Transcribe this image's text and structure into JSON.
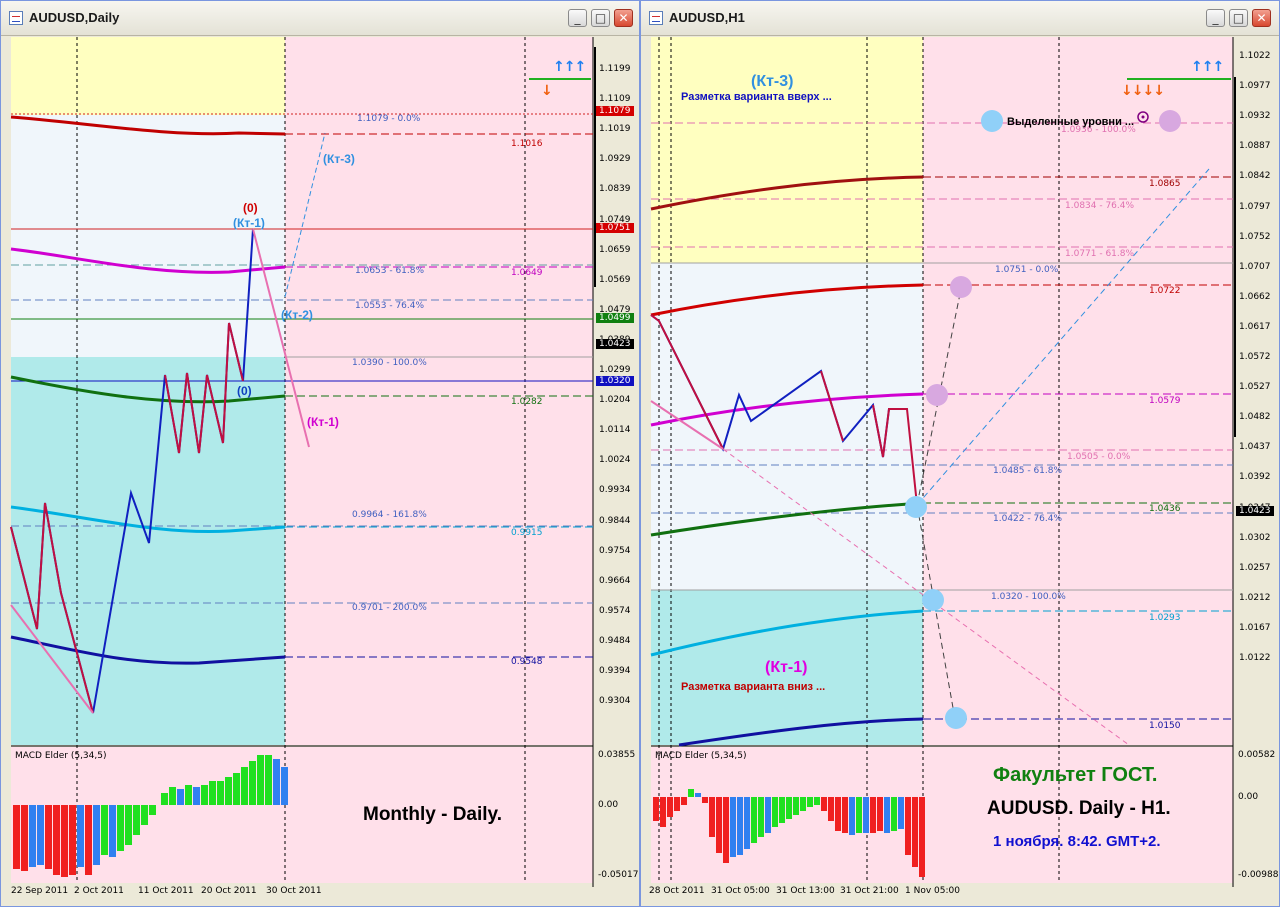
{
  "left_window": {
    "title": "AUDUSD,Daily",
    "indicator_label": "MACD Elder (5,34,5)",
    "caption": "Monthly - Daily.",
    "price_scale": [
      "1.1199",
      "1.1109",
      "1.1019",
      "1.0929",
      "1.0839",
      "1.0749",
      "1.0659",
      "1.0569",
      "1.0479",
      "1.0389",
      "1.0299",
      "1.0204",
      "1.0114",
      "1.0024",
      "0.9934",
      "0.9844",
      "0.9754",
      "0.9664",
      "0.9574",
      "0.9484",
      "0.9394",
      "0.9304"
    ],
    "price_tags": [
      {
        "text": "1.1079",
        "color": "#d40000"
      },
      {
        "text": "1.0751",
        "color": "#d40000"
      },
      {
        "text": "1.0499",
        "color": "#108010"
      },
      {
        "text": "1.0423",
        "color": "#000000"
      },
      {
        "text": "1.0320",
        "color": "#1010c0"
      }
    ],
    "macd_scale": [
      "0.03855",
      "0.00",
      "-0.05017"
    ],
    "dates": [
      "22 Sep 2011",
      "2 Oct 2011",
      "11 Oct 2011",
      "20 Oct 2011",
      "30 Oct 2011"
    ],
    "fib_levels": [
      {
        "text": "1.1079 - 0.0%",
        "color": "#4060c0"
      },
      {
        "text": "1.0653 - 61.8%",
        "color": "#4060c0"
      },
      {
        "text": "1.0553 - 76.4%",
        "color": "#4060c0"
      },
      {
        "text": "1.0390 - 100.0%",
        "color": "#4060c0"
      },
      {
        "text": "0.9964 - 161.8%",
        "color": "#4060c0"
      },
      {
        "text": "0.9701 - 200.0%",
        "color": "#4060c0"
      }
    ],
    "ma_values": [
      {
        "text": "1.1016",
        "color": "#c00000"
      },
      {
        "text": "1.0649",
        "color": "#c000c0"
      },
      {
        "text": "1.0282",
        "color": "#107010"
      },
      {
        "text": "0.9915",
        "color": "#00a0d0"
      },
      {
        "text": "0.9548",
        "color": "#1010a0"
      }
    ],
    "annotations": [
      {
        "text": "(0)",
        "color": "#d00000"
      },
      {
        "text": "(Кт-1)",
        "color": "#3090e0"
      },
      {
        "text": "(Кт-3)",
        "color": "#3090e0"
      },
      {
        "text": "(Кт-2)",
        "color": "#3090e0"
      },
      {
        "text": "(0)",
        "color": "#1040c0"
      },
      {
        "text": "(Кт-1)",
        "color": "#d000d0"
      }
    ],
    "arrows_up": "↑↑↑",
    "arrows_down": "↓"
  },
  "right_window": {
    "title": "AUDUSD,H1",
    "indicator_label": "MACD Elder (5,34,5)",
    "caption_title": "Факультет ГОСТ.",
    "caption_subtitle": "AUDUSD. Daily - H1.",
    "caption_date": "1 ноября. 8:42. GMT+2.",
    "label_up_kt": "(Кт-3)",
    "label_up_text": "Разметка варианта вверх ...",
    "label_down_kt": "(Кт-1)",
    "label_down_text": "Разметка варианта вниз ...",
    "label_levels": "Выделенные уровни ...",
    "price_scale": [
      "1.1022",
      "1.0977",
      "1.0932",
      "1.0887",
      "1.0842",
      "1.0797",
      "1.0752",
      "1.0707",
      "1.0662",
      "1.0617",
      "1.0572",
      "1.0527",
      "1.0482",
      "1.0437",
      "1.0392",
      "1.0347",
      "1.0302",
      "1.0257",
      "1.0212",
      "1.0167",
      "1.0122"
    ],
    "price_tag": "1.0423",
    "macd_scale": [
      "0.00582",
      "0.00",
      "-0.00988"
    ],
    "dates": [
      "28 Oct 2011",
      "31 Oct 05:00",
      "31 Oct 13:00",
      "31 Oct 21:00",
      "1 Nov 05:00"
    ],
    "fib_levels": [
      {
        "text": "1.0936 - 100.0%",
        "color": "#e070b0"
      },
      {
        "text": "1.0834 - 76.4%",
        "color": "#e070b0"
      },
      {
        "text": "1.0771 - 61.8%",
        "color": "#e070b0"
      },
      {
        "text": "1.0751 - 0.0%",
        "color": "#4060c0"
      },
      {
        "text": "1.0505 - 0.0%",
        "color": "#e070b0"
      },
      {
        "text": "1.0485 - 61.8%",
        "color": "#4060c0"
      },
      {
        "text": "1.0422 - 76.4%",
        "color": "#4060c0"
      },
      {
        "text": "1.0320 - 100.0%",
        "color": "#4060c0"
      }
    ],
    "ma_values": [
      {
        "text": "1.0865",
        "color": "#a00000"
      },
      {
        "text": "1.0722",
        "color": "#c00000"
      },
      {
        "text": "1.0579",
        "color": "#c000c0"
      },
      {
        "text": "1.0436",
        "color": "#107010"
      },
      {
        "text": "1.0293",
        "color": "#00a0d0"
      },
      {
        "text": "1.0150",
        "color": "#1010a0"
      }
    ],
    "arrows_up": "↑↑↑",
    "arrows_down": "↓↓↓↓"
  }
}
